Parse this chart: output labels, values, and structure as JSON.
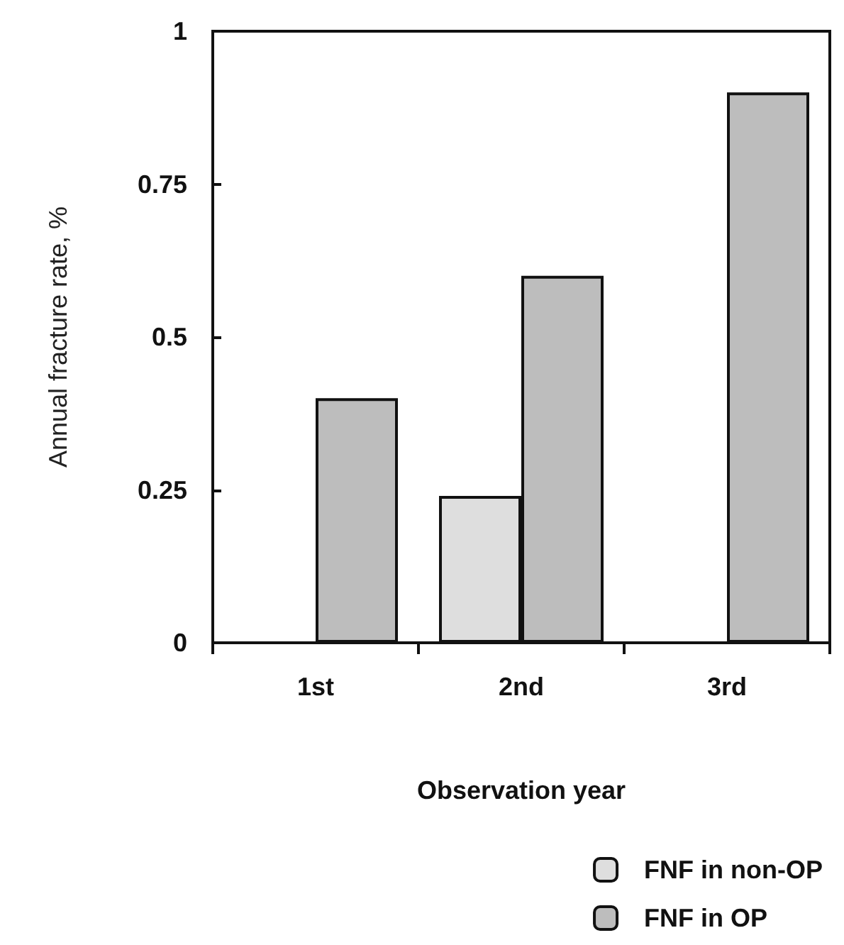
{
  "chart_data": {
    "type": "bar",
    "xlabel": "Observation year",
    "ylabel": "Annual fracture rate, %",
    "categories": [
      "1st",
      "2nd",
      "3rd"
    ],
    "series": [
      {
        "name": "FNF in non-OP",
        "color": "#dedede",
        "values": [
          null,
          0.24,
          null
        ]
      },
      {
        "name": "FNF in OP",
        "color": "#bdbdbd",
        "values": [
          0.4,
          0.6,
          0.9
        ]
      }
    ],
    "ylim": [
      0,
      1
    ],
    "yticks": [
      0,
      0.25,
      0.5,
      0.75,
      1
    ],
    "grid": false,
    "legend": "bottom right"
  }
}
